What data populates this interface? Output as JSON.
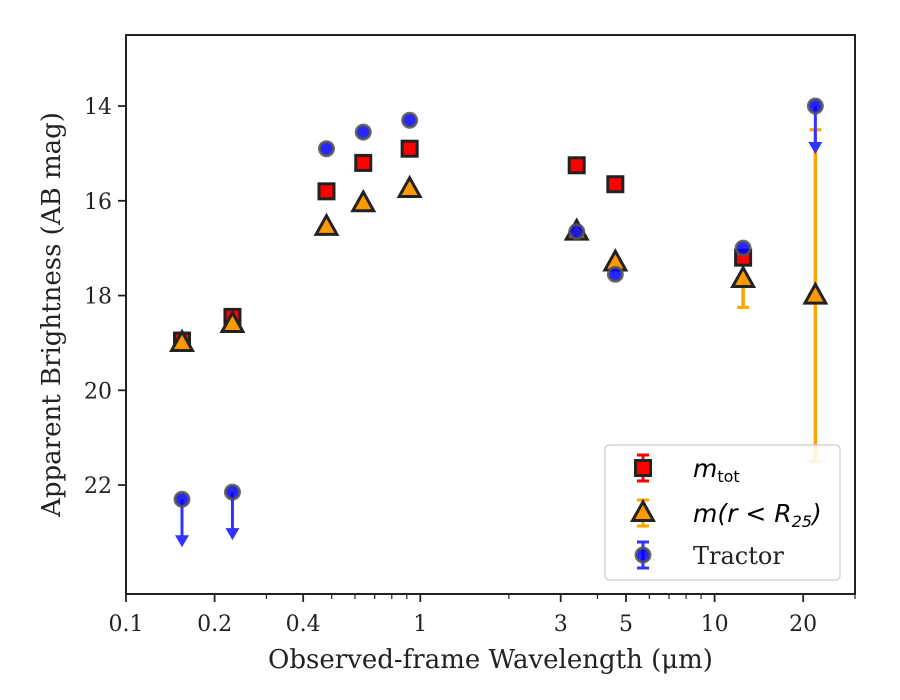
{
  "chart_data": {
    "type": "scatter",
    "xlabel": "Observed-frame Wavelength (μm)",
    "ylabel": "Apparent Brightness (AB mag)",
    "xscale": "log",
    "xlim": [
      0.1,
      30
    ],
    "ylim": [
      24.3,
      12.5
    ],
    "y_inverted": true,
    "x_ticks": [
      0.1,
      0.2,
      0.4,
      1,
      3,
      5,
      10,
      20
    ],
    "x_tick_labels": [
      "0.1",
      "0.2",
      "0.4",
      "1",
      "3",
      "5",
      "10",
      "20"
    ],
    "y_ticks": [
      14,
      16,
      18,
      20,
      22
    ],
    "y_tick_labels": [
      "14",
      "16",
      "18",
      "20",
      "22"
    ],
    "legend_position": "lower right",
    "series": [
      {
        "name_base": "m",
        "name_sub": "tot",
        "marker": "square",
        "color": "#ff0000",
        "edge_color": "#222222",
        "points": [
          {
            "x": 0.155,
            "y": 18.95
          },
          {
            "x": 0.23,
            "y": 18.45
          },
          {
            "x": 0.48,
            "y": 15.8
          },
          {
            "x": 0.64,
            "y": 15.2
          },
          {
            "x": 0.92,
            "y": 14.9
          },
          {
            "x": 3.4,
            "y": 15.25
          },
          {
            "x": 4.6,
            "y": 15.65
          },
          {
            "x": 12.5,
            "y": 17.2
          }
        ]
      },
      {
        "name_label": "m(r < R25)",
        "marker": "triangle",
        "color": "#ff9900",
        "edge_color": "#222222",
        "error_color": "#ffa500",
        "points": [
          {
            "x": 0.155,
            "y": 19.0
          },
          {
            "x": 0.23,
            "y": 18.6
          },
          {
            "x": 0.48,
            "y": 16.55
          },
          {
            "x": 0.64,
            "y": 16.05
          },
          {
            "x": 0.92,
            "y": 15.75
          },
          {
            "x": 3.4,
            "y": 16.65
          },
          {
            "x": 4.6,
            "y": 17.3
          },
          {
            "x": 12.5,
            "y": 17.65,
            "err_low": 0.6
          },
          {
            "x": 22.0,
            "y": 18.0,
            "err_high": 3.5,
            "err_low": 3.5
          }
        ]
      },
      {
        "name": "Tractor",
        "marker": "circle",
        "color": "#0000ff",
        "edge_color": "#555555",
        "error_color": "#3333ff",
        "points": [
          {
            "x": 0.155,
            "y": 22.3,
            "upper_limit": true
          },
          {
            "x": 0.23,
            "y": 22.15,
            "upper_limit": true
          },
          {
            "x": 0.48,
            "y": 14.9
          },
          {
            "x": 0.64,
            "y": 14.55
          },
          {
            "x": 0.92,
            "y": 14.3
          },
          {
            "x": 3.4,
            "y": 16.65
          },
          {
            "x": 4.6,
            "y": 17.55
          },
          {
            "x": 12.5,
            "y": 17.0
          },
          {
            "x": 22.0,
            "y": 14.0,
            "upper_limit": true
          }
        ]
      }
    ]
  }
}
